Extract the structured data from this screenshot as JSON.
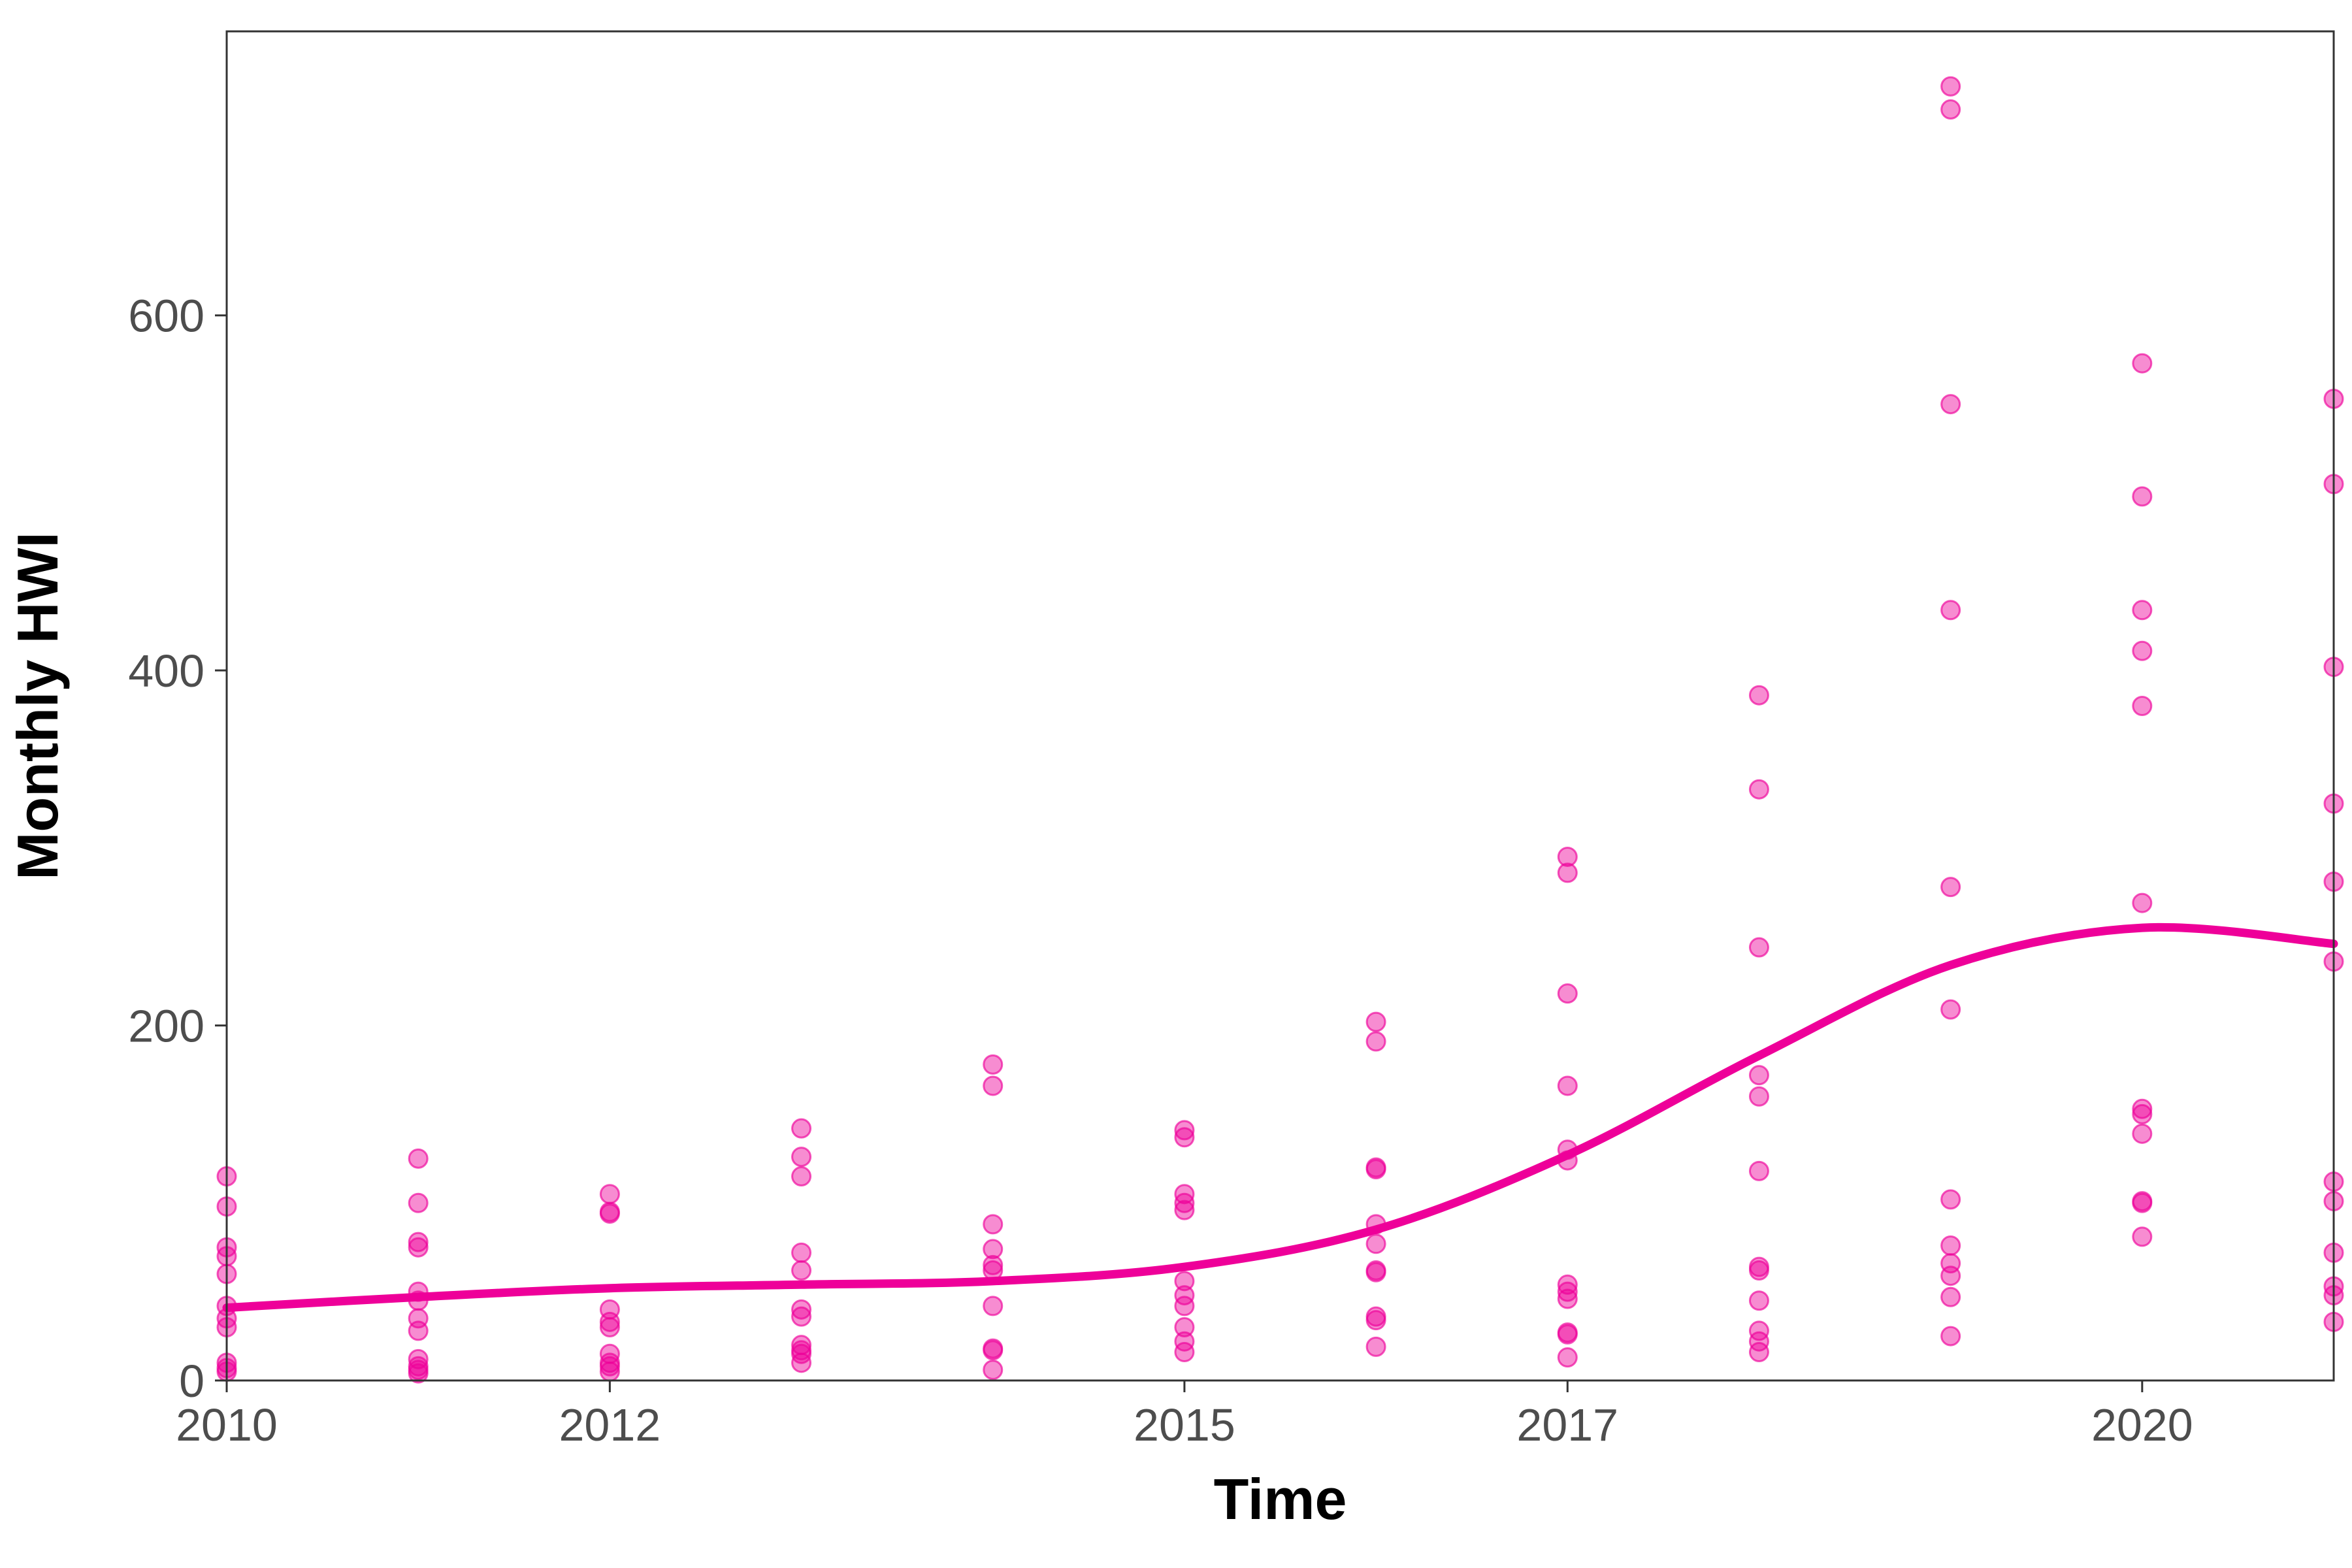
{
  "chart_data": {
    "type": "scatter",
    "title": "",
    "xlabel": "Time",
    "ylabel": "Monthly HWI",
    "xlim": [
      2010,
      2021.0
    ],
    "ylim": [
      0,
      760
    ],
    "x_ticks": [
      2010,
      2012,
      2015,
      2017,
      2020
    ],
    "y_ticks": [
      0,
      200,
      400,
      600
    ],
    "grid": false,
    "legend": "none",
    "point_color": "#ee0099",
    "line_color": "#ee0099",
    "series": [
      {
        "type": "scatter",
        "points": [
          {
            "x": 2010,
            "y": 115
          },
          {
            "x": 2010,
            "y": 98
          },
          {
            "x": 2010,
            "y": 75
          },
          {
            "x": 2010,
            "y": 70
          },
          {
            "x": 2010,
            "y": 60
          },
          {
            "x": 2010,
            "y": 42
          },
          {
            "x": 2010,
            "y": 35
          },
          {
            "x": 2010,
            "y": 30
          },
          {
            "x": 2010,
            "y": 10
          },
          {
            "x": 2010,
            "y": 7
          },
          {
            "x": 2010,
            "y": 5
          },
          {
            "x": 2011,
            "y": 125
          },
          {
            "x": 2011,
            "y": 100
          },
          {
            "x": 2011,
            "y": 78
          },
          {
            "x": 2011,
            "y": 75
          },
          {
            "x": 2011,
            "y": 50
          },
          {
            "x": 2011,
            "y": 45
          },
          {
            "x": 2011,
            "y": 35
          },
          {
            "x": 2011,
            "y": 28
          },
          {
            "x": 2011,
            "y": 12
          },
          {
            "x": 2011,
            "y": 8
          },
          {
            "x": 2011,
            "y": 6
          },
          {
            "x": 2011,
            "y": 4
          },
          {
            "x": 2012,
            "y": 105
          },
          {
            "x": 2012,
            "y": 95
          },
          {
            "x": 2012,
            "y": 94
          },
          {
            "x": 2012,
            "y": 40
          },
          {
            "x": 2012,
            "y": 33
          },
          {
            "x": 2012,
            "y": 30
          },
          {
            "x": 2012,
            "y": 15
          },
          {
            "x": 2012,
            "y": 10
          },
          {
            "x": 2012,
            "y": 8
          },
          {
            "x": 2012,
            "y": 5
          },
          {
            "x": 2013,
            "y": 142
          },
          {
            "x": 2013,
            "y": 126
          },
          {
            "x": 2013,
            "y": 115
          },
          {
            "x": 2013,
            "y": 72
          },
          {
            "x": 2013,
            "y": 62
          },
          {
            "x": 2013,
            "y": 40
          },
          {
            "x": 2013,
            "y": 36
          },
          {
            "x": 2013,
            "y": 20
          },
          {
            "x": 2013,
            "y": 17
          },
          {
            "x": 2013,
            "y": 15
          },
          {
            "x": 2013,
            "y": 10
          },
          {
            "x": 2014,
            "y": 178
          },
          {
            "x": 2014,
            "y": 166
          },
          {
            "x": 2014,
            "y": 88
          },
          {
            "x": 2014,
            "y": 74
          },
          {
            "x": 2014,
            "y": 65
          },
          {
            "x": 2014,
            "y": 62
          },
          {
            "x": 2014,
            "y": 42
          },
          {
            "x": 2014,
            "y": 18
          },
          {
            "x": 2014,
            "y": 17
          },
          {
            "x": 2014,
            "y": 6
          },
          {
            "x": 2015,
            "y": 141
          },
          {
            "x": 2015,
            "y": 137
          },
          {
            "x": 2015,
            "y": 105
          },
          {
            "x": 2015,
            "y": 100
          },
          {
            "x": 2015,
            "y": 96
          },
          {
            "x": 2015,
            "y": 56
          },
          {
            "x": 2015,
            "y": 48
          },
          {
            "x": 2015,
            "y": 42
          },
          {
            "x": 2015,
            "y": 30
          },
          {
            "x": 2015,
            "y": 22
          },
          {
            "x": 2015,
            "y": 16
          },
          {
            "x": 2016,
            "y": 202
          },
          {
            "x": 2016,
            "y": 191
          },
          {
            "x": 2016,
            "y": 120
          },
          {
            "x": 2016,
            "y": 119
          },
          {
            "x": 2016,
            "y": 88
          },
          {
            "x": 2016,
            "y": 77
          },
          {
            "x": 2016,
            "y": 62
          },
          {
            "x": 2016,
            "y": 61
          },
          {
            "x": 2016,
            "y": 36
          },
          {
            "x": 2016,
            "y": 34
          },
          {
            "x": 2016,
            "y": 19
          },
          {
            "x": 2017,
            "y": 295
          },
          {
            "x": 2017,
            "y": 286
          },
          {
            "x": 2017,
            "y": 218
          },
          {
            "x": 2017,
            "y": 166
          },
          {
            "x": 2017,
            "y": 130
          },
          {
            "x": 2017,
            "y": 124
          },
          {
            "x": 2017,
            "y": 54
          },
          {
            "x": 2017,
            "y": 50
          },
          {
            "x": 2017,
            "y": 46
          },
          {
            "x": 2017,
            "y": 27
          },
          {
            "x": 2017,
            "y": 26
          },
          {
            "x": 2017,
            "y": 13
          },
          {
            "x": 2018,
            "y": 386
          },
          {
            "x": 2018,
            "y": 333
          },
          {
            "x": 2018,
            "y": 244
          },
          {
            "x": 2018,
            "y": 172
          },
          {
            "x": 2018,
            "y": 160
          },
          {
            "x": 2018,
            "y": 118
          },
          {
            "x": 2018,
            "y": 64
          },
          {
            "x": 2018,
            "y": 62
          },
          {
            "x": 2018,
            "y": 45
          },
          {
            "x": 2018,
            "y": 28
          },
          {
            "x": 2018,
            "y": 22
          },
          {
            "x": 2018,
            "y": 16
          },
          {
            "x": 2019,
            "y": 729
          },
          {
            "x": 2019,
            "y": 716
          },
          {
            "x": 2019,
            "y": 550
          },
          {
            "x": 2019,
            "y": 434
          },
          {
            "x": 2019,
            "y": 278
          },
          {
            "x": 2019,
            "y": 209
          },
          {
            "x": 2019,
            "y": 102
          },
          {
            "x": 2019,
            "y": 76
          },
          {
            "x": 2019,
            "y": 66
          },
          {
            "x": 2019,
            "y": 59
          },
          {
            "x": 2019,
            "y": 47
          },
          {
            "x": 2019,
            "y": 25
          },
          {
            "x": 2020,
            "y": 573
          },
          {
            "x": 2020,
            "y": 498
          },
          {
            "x": 2020,
            "y": 434
          },
          {
            "x": 2020,
            "y": 411
          },
          {
            "x": 2020,
            "y": 380
          },
          {
            "x": 2020,
            "y": 269
          },
          {
            "x": 2020,
            "y": 153
          },
          {
            "x": 2020,
            "y": 150
          },
          {
            "x": 2020,
            "y": 139
          },
          {
            "x": 2020,
            "y": 101
          },
          {
            "x": 2020,
            "y": 100
          },
          {
            "x": 2020,
            "y": 81
          },
          {
            "x": 2021,
            "y": 553
          },
          {
            "x": 2021,
            "y": 505
          },
          {
            "x": 2021,
            "y": 402
          },
          {
            "x": 2021,
            "y": 325
          },
          {
            "x": 2021,
            "y": 281
          },
          {
            "x": 2021,
            "y": 236
          },
          {
            "x": 2021,
            "y": 112
          },
          {
            "x": 2021,
            "y": 101
          },
          {
            "x": 2021,
            "y": 72
          },
          {
            "x": 2021,
            "y": 53
          },
          {
            "x": 2021,
            "y": 48
          },
          {
            "x": 2021,
            "y": 33
          }
        ]
      },
      {
        "type": "line",
        "smooth": true,
        "points": [
          {
            "x": 2010,
            "y": 41
          },
          {
            "x": 2011,
            "y": 47
          },
          {
            "x": 2012,
            "y": 52
          },
          {
            "x": 2013,
            "y": 54
          },
          {
            "x": 2014,
            "y": 56
          },
          {
            "x": 2015,
            "y": 64
          },
          {
            "x": 2016,
            "y": 85
          },
          {
            "x": 2017,
            "y": 127
          },
          {
            "x": 2018,
            "y": 183
          },
          {
            "x": 2019,
            "y": 234
          },
          {
            "x": 2020,
            "y": 255
          },
          {
            "x": 2021,
            "y": 246
          }
        ]
      }
    ]
  }
}
